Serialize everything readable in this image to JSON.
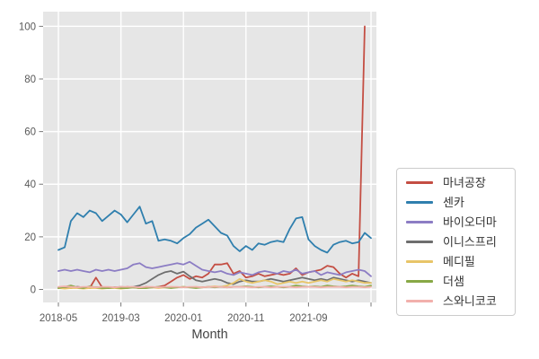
{
  "chart_data": {
    "type": "line",
    "title": "",
    "xlabel": "Month",
    "ylabel": "",
    "grid": true,
    "legend_position": "right",
    "panel_bg": "#e6e6e6",
    "gridline_color": "#ffffff",
    "tick_label_color": "#595959",
    "axis_title_color": "#444444",
    "ylim": [
      -5,
      105.5
    ],
    "y_ticks": [
      0,
      20,
      40,
      60,
      80,
      100
    ],
    "x_unit": "month",
    "x_start": "2018-05",
    "x_point_count": 51,
    "x_ticks": [
      {
        "index": 0,
        "label": "2018-05"
      },
      {
        "index": 10,
        "label": "2019-03"
      },
      {
        "index": 20,
        "label": "2020-01"
      },
      {
        "index": 30,
        "label": "2020-11"
      },
      {
        "index": 40,
        "label": "2021-09"
      },
      {
        "index": 50,
        "label": ""
      }
    ],
    "series": [
      {
        "name": "마녀공장",
        "color": "#c44e43",
        "values": [
          0.5,
          0.8,
          0.5,
          1,
          0.8,
          0.5,
          4.5,
          0.8,
          0.5,
          0.8,
          0.5,
          1,
          0.8,
          0.5,
          1,
          0.8,
          1,
          1.5,
          3,
          4.5,
          5.5,
          4,
          5,
          4.5,
          6,
          9.5,
          9.5,
          10,
          6,
          7,
          4.5,
          5,
          6,
          5,
          5.5,
          6,
          5.5,
          6,
          8,
          5.5,
          6.5,
          7,
          7.5,
          9,
          8.5,
          6,
          4.5,
          6,
          5,
          100,
          null
        ]
      },
      {
        "name": "센카",
        "color": "#2f7fae",
        "values": [
          15,
          16,
          26,
          29,
          27.5,
          30,
          29,
          26,
          28,
          30,
          28.5,
          25.5,
          28.5,
          31.5,
          25,
          26,
          18.5,
          19,
          18.5,
          17.5,
          19.5,
          21,
          23.5,
          25,
          26.5,
          24,
          21.5,
          20.5,
          16.5,
          14.5,
          16.5,
          15,
          17.5,
          17,
          18,
          18.5,
          18,
          23,
          27,
          27.5,
          19,
          16.5,
          15,
          14,
          17,
          18,
          18.5,
          17.5,
          18,
          21.5,
          19.5
        ]
      },
      {
        "name": "바이오더마",
        "color": "#8c7dc4",
        "values": [
          7,
          7.5,
          7,
          7.5,
          7,
          6.5,
          7.5,
          7,
          7.5,
          7,
          7.5,
          8,
          9.5,
          10,
          8.5,
          8,
          8.5,
          9,
          9.5,
          10,
          9.5,
          10.5,
          9,
          7.5,
          7,
          6.5,
          7,
          6,
          5.5,
          6.5,
          6,
          5.5,
          6.5,
          7,
          6.5,
          6,
          7,
          6.5,
          7.5,
          6,
          6.5,
          7,
          5.5,
          6.5,
          6,
          5.5,
          6.5,
          7,
          7.5,
          7,
          5
        ]
      },
      {
        "name": "이니스프리",
        "color": "#6e6e6e",
        "values": [
          0.5,
          0.8,
          0.5,
          1,
          0.8,
          0.5,
          0.8,
          1,
          0.5,
          0.8,
          1,
          0.8,
          1,
          1.5,
          2.5,
          4,
          5.5,
          6.5,
          7,
          6,
          6.8,
          5,
          3.5,
          3,
          3.5,
          4,
          3.5,
          2.5,
          2,
          3,
          3.5,
          3,
          3,
          3.5,
          4,
          3.5,
          3,
          3.5,
          4,
          4.5,
          4,
          3.5,
          4,
          3.5,
          4.5,
          4,
          3.5,
          3,
          3.5,
          3,
          2.5
        ]
      },
      {
        "name": "메디필",
        "color": "#e8c568",
        "values": [
          0.5,
          0.3,
          0.5,
          0.5,
          0.3,
          0.5,
          0.5,
          0.3,
          0.5,
          0.5,
          0.3,
          0.5,
          0.8,
          0.5,
          0.5,
          0.8,
          0.5,
          0.8,
          1,
          0.8,
          1,
          0.8,
          1,
          0.8,
          1,
          1.2,
          1,
          1.5,
          2.5,
          4,
          3,
          2.5,
          3,
          3.5,
          3,
          2,
          2.5,
          3,
          2.5,
          3,
          2.5,
          3,
          3.5,
          3,
          4,
          3.5,
          3,
          3.5,
          3,
          2.5,
          2.5
        ]
      },
      {
        "name": "더샘",
        "color": "#87a846",
        "values": [
          0.5,
          1,
          1.5,
          0.8,
          0.5,
          1.2,
          0.8,
          0.5,
          0.5,
          0.8,
          0.5,
          0.5,
          0.8,
          0.5,
          0.5,
          0.8,
          1,
          0.8,
          0.5,
          0.8,
          1,
          0.8,
          0.5,
          0.8,
          1,
          0.8,
          1,
          0.8,
          1,
          1,
          1.2,
          1,
          0.8,
          1,
          1.2,
          1,
          0.8,
          1,
          1.5,
          1.2,
          1,
          1.2,
          1,
          1.5,
          1.2,
          1,
          1.2,
          1.5,
          1.2,
          1,
          1.5
        ]
      },
      {
        "name": "스와니코코",
        "color": "#f2b0ac",
        "values": [
          1,
          1.2,
          1,
          0.8,
          1,
          1,
          0.8,
          1,
          1,
          0.8,
          1,
          1,
          1,
          0.8,
          1,
          1,
          0.8,
          1,
          1,
          1,
          0.8,
          1,
          1,
          0.8,
          1,
          1,
          1,
          0.8,
          1,
          1,
          1,
          0.8,
          1,
          1,
          0.8,
          1,
          1,
          1,
          0.8,
          1,
          1,
          1,
          0.8,
          1,
          1,
          1,
          0.8,
          1,
          1,
          0.8,
          1
        ]
      }
    ]
  }
}
